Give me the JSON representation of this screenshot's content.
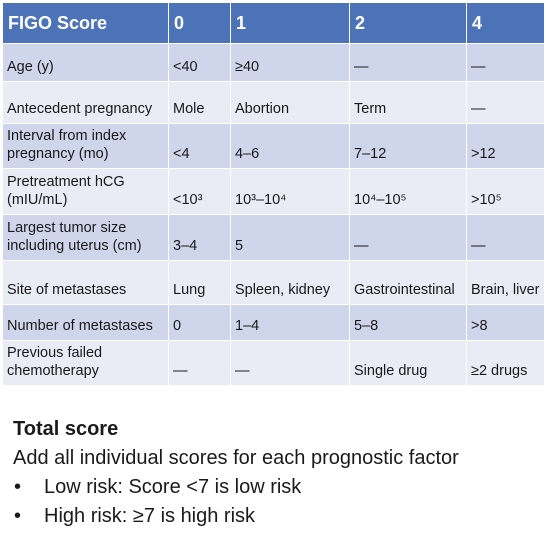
{
  "table": {
    "headers": [
      "FIGO Score",
      "0",
      "1",
      "2",
      "4"
    ],
    "rows": [
      [
        "Age (y)",
        "<40",
        "≥40",
        "—",
        "—"
      ],
      [
        "Antecedent pregnancy",
        "Mole",
        "Abortion",
        "Term",
        "—"
      ],
      [
        "Interval from index pregnancy (mo)",
        "<4",
        "4–6",
        "7–12",
        ">12"
      ],
      [
        "Pretreatment hCG (mIU/mL)",
        "<10³",
        "10³–10⁴",
        "10⁴–10⁵",
        ">10⁵"
      ],
      [
        "Largest tumor size including uterus (cm)",
        "3–4",
        "5",
        "—",
        "—"
      ],
      [
        "Site of metastases",
        "Lung",
        "Spleen, kidney",
        "Gastrointestinal",
        "Brain, liver"
      ],
      [
        "Number of metastases",
        "0",
        "1–4",
        "5–8",
        ">8"
      ],
      [
        "Previous failed chemotherapy",
        "—",
        "—",
        "Single drug",
        "≥2 drugs"
      ]
    ]
  },
  "notes": {
    "title": "Total score",
    "subtitle": "Add all individual scores for each prognostic factor",
    "bullet_glyph": "•",
    "bullets": [
      "Low risk: Score <7 is low risk",
      "High risk: ≥7 is high risk"
    ]
  },
  "colors": {
    "header_bg": "#4c73b8",
    "row_dark": "#cfd5ea",
    "row_light": "#e9ebf5"
  }
}
